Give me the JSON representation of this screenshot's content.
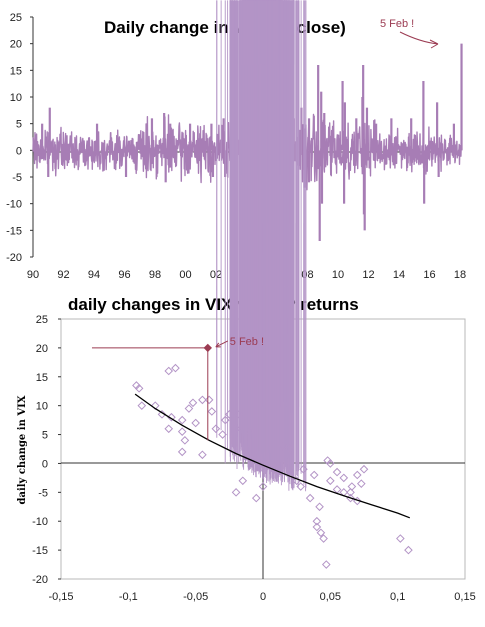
{
  "colors": {
    "series": "#a77db5",
    "marker": "#b394c6",
    "highlight": "#9b3b52",
    "trend": "#000000",
    "frame": "#b8b8b8",
    "axis": "#333333"
  },
  "chart_data": [
    {
      "type": "line",
      "title": "Daily change in VIX (on close)",
      "xlabel": "",
      "ylabel": "",
      "xlim": [
        1990,
        2018
      ],
      "ylim": [
        -20,
        25
      ],
      "grid": false,
      "legend": "none",
      "x_tick_labels": [
        "90",
        "92",
        "94",
        "96",
        "98",
        "00",
        "02",
        "04",
        "06",
        "08",
        "10",
        "12",
        "14",
        "16",
        "18"
      ],
      "y_tick_labels": [
        "25",
        "20",
        "15",
        "10",
        "5",
        "0",
        "-5",
        "-10",
        "-15",
        "-20"
      ],
      "annotation": {
        "text": "5 Feb !",
        "x": 2018.1,
        "y": 20
      },
      "notable_moves": [
        {
          "x": 1990.6,
          "y": 5
        },
        {
          "x": 1991.1,
          "y": 8
        },
        {
          "x": 1991.0,
          "y": -5
        },
        {
          "x": 1994.2,
          "y": 5
        },
        {
          "x": 1996.1,
          "y": -5
        },
        {
          "x": 1997.8,
          "y": 6
        },
        {
          "x": 1998.6,
          "y": 7
        },
        {
          "x": 1998.7,
          "y": -6
        },
        {
          "x": 1999.0,
          "y": 5
        },
        {
          "x": 2000.3,
          "y": 5
        },
        {
          "x": 2001.7,
          "y": 5
        },
        {
          "x": 2001.8,
          "y": -5
        },
        {
          "x": 2002.5,
          "y": 6
        },
        {
          "x": 2002.6,
          "y": -5
        },
        {
          "x": 2003.2,
          "y": -5
        },
        {
          "x": 2006.4,
          "y": 4
        },
        {
          "x": 2007.1,
          "y": 6
        },
        {
          "x": 2007.6,
          "y": 8
        },
        {
          "x": 2007.8,
          "y": -7
        },
        {
          "x": 2008.1,
          "y": 6
        },
        {
          "x": 2008.1,
          "y": -6
        },
        {
          "x": 2008.7,
          "y": 16
        },
        {
          "x": 2008.8,
          "y": -17
        },
        {
          "x": 2008.9,
          "y": 11
        },
        {
          "x": 2008.95,
          "y": -10
        },
        {
          "x": 2009.1,
          "y": 7
        },
        {
          "x": 2010.3,
          "y": 13
        },
        {
          "x": 2010.4,
          "y": -10
        },
        {
          "x": 2010.45,
          "y": 9
        },
        {
          "x": 2011.2,
          "y": 6
        },
        {
          "x": 2011.6,
          "y": 10
        },
        {
          "x": 2011.65,
          "y": 16
        },
        {
          "x": 2011.7,
          "y": -12
        },
        {
          "x": 2011.75,
          "y": -15
        },
        {
          "x": 2011.9,
          "y": 8
        },
        {
          "x": 2012.5,
          "y": 5
        },
        {
          "x": 2013.5,
          "y": 6
        },
        {
          "x": 2014.8,
          "y": 6
        },
        {
          "x": 2015.6,
          "y": 13
        },
        {
          "x": 2015.65,
          "y": -10
        },
        {
          "x": 2016.5,
          "y": 9
        },
        {
          "x": 2016.6,
          "y": -5
        },
        {
          "x": 2017.6,
          "y": 5
        },
        {
          "x": 2018.1,
          "y": 20
        }
      ]
    },
    {
      "type": "scatter",
      "title": "daily changes in VIX vs S&P returns",
      "xlabel": "",
      "ylabel": "daily change in VIX",
      "xlim": [
        -0.15,
        0.15
      ],
      "ylim": [
        -20,
        25
      ],
      "grid": false,
      "legend": "none",
      "x_tick_labels": [
        "-0,15",
        "-0,1",
        "-0,05",
        "0",
        "0,05",
        "0,1",
        "0,15"
      ],
      "y_tick_labels": [
        "25",
        "20",
        "15",
        "10",
        "5",
        "0",
        "-5",
        "-10",
        "-15",
        "-20"
      ],
      "highlight": {
        "label": "5 Feb !",
        "x": -0.041,
        "y": 20
      },
      "trendline": {
        "type": "quadratic",
        "x": [
          -0.095,
          -0.08,
          -0.06,
          -0.04,
          -0.02,
          0.0,
          0.02,
          0.04,
          0.06,
          0.08,
          0.1,
          0.109
        ],
        "y": [
          12,
          9.5,
          6.6,
          4.0,
          1.7,
          -0.3,
          -2.2,
          -4.0,
          -5.6,
          -7.1,
          -8.6,
          -9.4
        ]
      },
      "outliers": [
        {
          "x": -0.094,
          "y": 13.5
        },
        {
          "x": -0.092,
          "y": 13
        },
        {
          "x": -0.09,
          "y": 10
        },
        {
          "x": -0.08,
          "y": 10
        },
        {
          "x": -0.07,
          "y": 16
        },
        {
          "x": -0.065,
          "y": 16.5
        },
        {
          "x": -0.075,
          "y": 8.5
        },
        {
          "x": -0.068,
          "y": 8
        },
        {
          "x": -0.06,
          "y": 7.5
        },
        {
          "x": -0.055,
          "y": 9.5
        },
        {
          "x": -0.052,
          "y": 10.5
        },
        {
          "x": -0.05,
          "y": 7
        },
        {
          "x": -0.045,
          "y": 11
        },
        {
          "x": -0.04,
          "y": 11
        },
        {
          "x": -0.035,
          "y": 6
        },
        {
          "x": -0.03,
          "y": 5
        },
        {
          "x": -0.025,
          "y": 8.5
        },
        {
          "x": -0.018,
          "y": 8.5
        },
        {
          "x": -0.058,
          "y": 4
        },
        {
          "x": -0.06,
          "y": 2
        },
        {
          "x": -0.045,
          "y": 1.5
        },
        {
          "x": -0.07,
          "y": 6
        },
        {
          "x": -0.06,
          "y": 5.5
        },
        {
          "x": 0.028,
          "y": -4
        },
        {
          "x": 0.035,
          "y": -6
        },
        {
          "x": 0.042,
          "y": -7.5
        },
        {
          "x": 0.04,
          "y": -10
        },
        {
          "x": 0.04,
          "y": -11
        },
        {
          "x": 0.043,
          "y": -12
        },
        {
          "x": 0.045,
          "y": -13
        },
        {
          "x": 0.047,
          "y": -17.5
        },
        {
          "x": 0.055,
          "y": -4.5
        },
        {
          "x": 0.06,
          "y": -5
        },
        {
          "x": 0.065,
          "y": -5
        },
        {
          "x": 0.07,
          "y": -6.5
        },
        {
          "x": 0.05,
          "y": 0
        },
        {
          "x": 0.048,
          "y": 0.5
        },
        {
          "x": 0.055,
          "y": -1.5
        },
        {
          "x": 0.025,
          "y": -3
        },
        {
          "x": 0.03,
          "y": -1
        },
        {
          "x": 0.038,
          "y": -2
        },
        {
          "x": 0.05,
          "y": -3
        },
        {
          "x": 0.06,
          "y": -2.5
        },
        {
          "x": 0.066,
          "y": -4
        },
        {
          "x": 0.07,
          "y": -2
        },
        {
          "x": 0.073,
          "y": -3.5
        },
        {
          "x": -0.015,
          "y": -3
        },
        {
          "x": -0.02,
          "y": -5
        },
        {
          "x": -0.005,
          "y": -6
        },
        {
          "x": 0.0,
          "y": -4
        },
        {
          "x": 0.02,
          "y": 2.5
        },
        {
          "x": 0.015,
          "y": 3
        },
        {
          "x": 0.102,
          "y": -13
        },
        {
          "x": 0.108,
          "y": -15
        },
        {
          "x": 0.075,
          "y": -1
        },
        {
          "x": 0.065,
          "y": -6
        },
        {
          "x": -0.038,
          "y": 9
        },
        {
          "x": -0.028,
          "y": 7.5
        },
        {
          "x": -0.02,
          "y": 6
        },
        {
          "x": -0.01,
          "y": 5.5
        }
      ]
    }
  ]
}
